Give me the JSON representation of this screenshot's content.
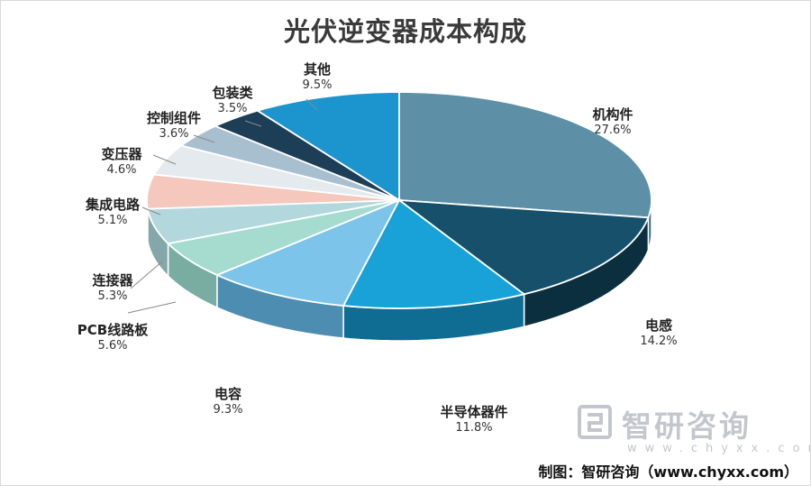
{
  "chart_data": {
    "type": "pie",
    "title": "光伏逆变器成本构成",
    "slices": [
      {
        "label": "机构件",
        "value": 27.6,
        "pct_text": "27.6%",
        "color": "#5d8fa7",
        "side": "#3e6b82"
      },
      {
        "label": "电感",
        "value": 14.2,
        "pct_text": "14.2%",
        "color": "#17506b",
        "side": "#0c2f40"
      },
      {
        "label": "半导体器件",
        "value": 11.8,
        "pct_text": "11.8%",
        "color": "#18a2d8",
        "side": "#0f6d93"
      },
      {
        "label": "电容",
        "value": 9.3,
        "pct_text": "9.3%",
        "color": "#7cc4ea",
        "side": "#4d8db1"
      },
      {
        "label": "PCB线路板",
        "value": 5.6,
        "pct_text": "5.6%",
        "color": "#a6dcd0",
        "side": "#79ada1"
      },
      {
        "label": "连接器",
        "value": 5.3,
        "pct_text": "5.3%",
        "color": "#b2d7dc",
        "side": "#84a7ab"
      },
      {
        "label": "集成电路",
        "value": 5.1,
        "pct_text": "5.1%",
        "color": "#f5c7bd",
        "side": "#cfa095"
      },
      {
        "label": "变压器",
        "value": 4.6,
        "pct_text": "4.6%",
        "color": "#e4eaee",
        "side": "#b9c0c5"
      },
      {
        "label": "控制组件",
        "value": 3.6,
        "pct_text": "3.6%",
        "color": "#a8bfcf",
        "side": "#7d95a5"
      },
      {
        "label": "包装类",
        "value": 3.5,
        "pct_text": "3.5%",
        "color": "#1c3e57",
        "side": "#0f2434"
      },
      {
        "label": "其他",
        "value": 9.5,
        "pct_text": "9.5%",
        "color": "#1c95cf",
        "side": "#116690"
      }
    ],
    "extra_slice": {
      "value": 0.0
    },
    "legend": "none (labels beside slices)"
  },
  "watermark": {
    "name": "智研咨询",
    "url": "www.chyxx.com"
  },
  "source_text": "制图：智研咨询（www.chyxx.com）"
}
